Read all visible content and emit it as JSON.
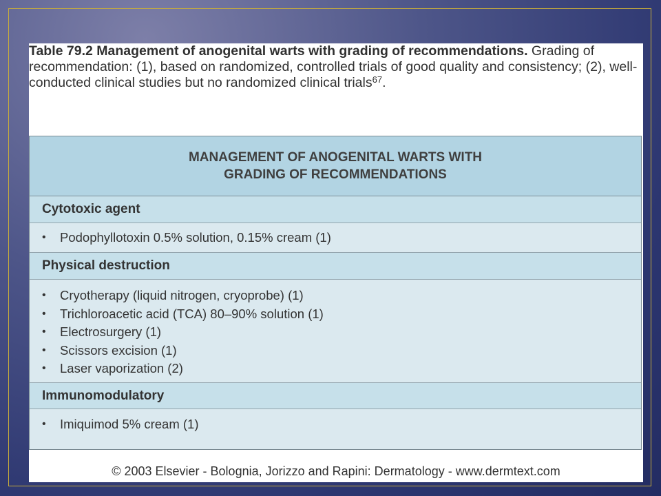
{
  "caption": {
    "lead": "Table 79.2 Management of anogenital warts with grading of recommendations.",
    "line1_rest": "",
    "body": " Grading of recommendation: (1), based on randomized, controlled trials of good quality and consistency; (2), well-conducted clinical studies but no randomized clinical trials",
    "ref": "67",
    "end": "."
  },
  "table": {
    "title_line1": "MANAGEMENT OF ANOGENITAL WARTS WITH",
    "title_line2": "GRADING OF RECOMMENDATIONS",
    "sections": [
      {
        "heading": "Cytotoxic agent",
        "items": [
          "Podophyllotoxin 0.5% solution, 0.15% cream (1)"
        ]
      },
      {
        "heading": "Physical destruction",
        "items": [
          "Cryotherapy (liquid nitrogen, cryoprobe) (1)",
          "Trichloroacetic acid (TCA) 80–90% solution (1)",
          "Electrosurgery (1)",
          "Scissors excision (1)",
          "Laser vaporization (2)"
        ]
      },
      {
        "heading": "Immunomodulatory",
        "items": [
          "Imiquimod 5% cream (1)"
        ]
      }
    ]
  },
  "footer": "© 2003 Elsevier - Bolognia, Jorizzo and Rapini: Dermatology - www.dermtext.com",
  "bullet": "•"
}
